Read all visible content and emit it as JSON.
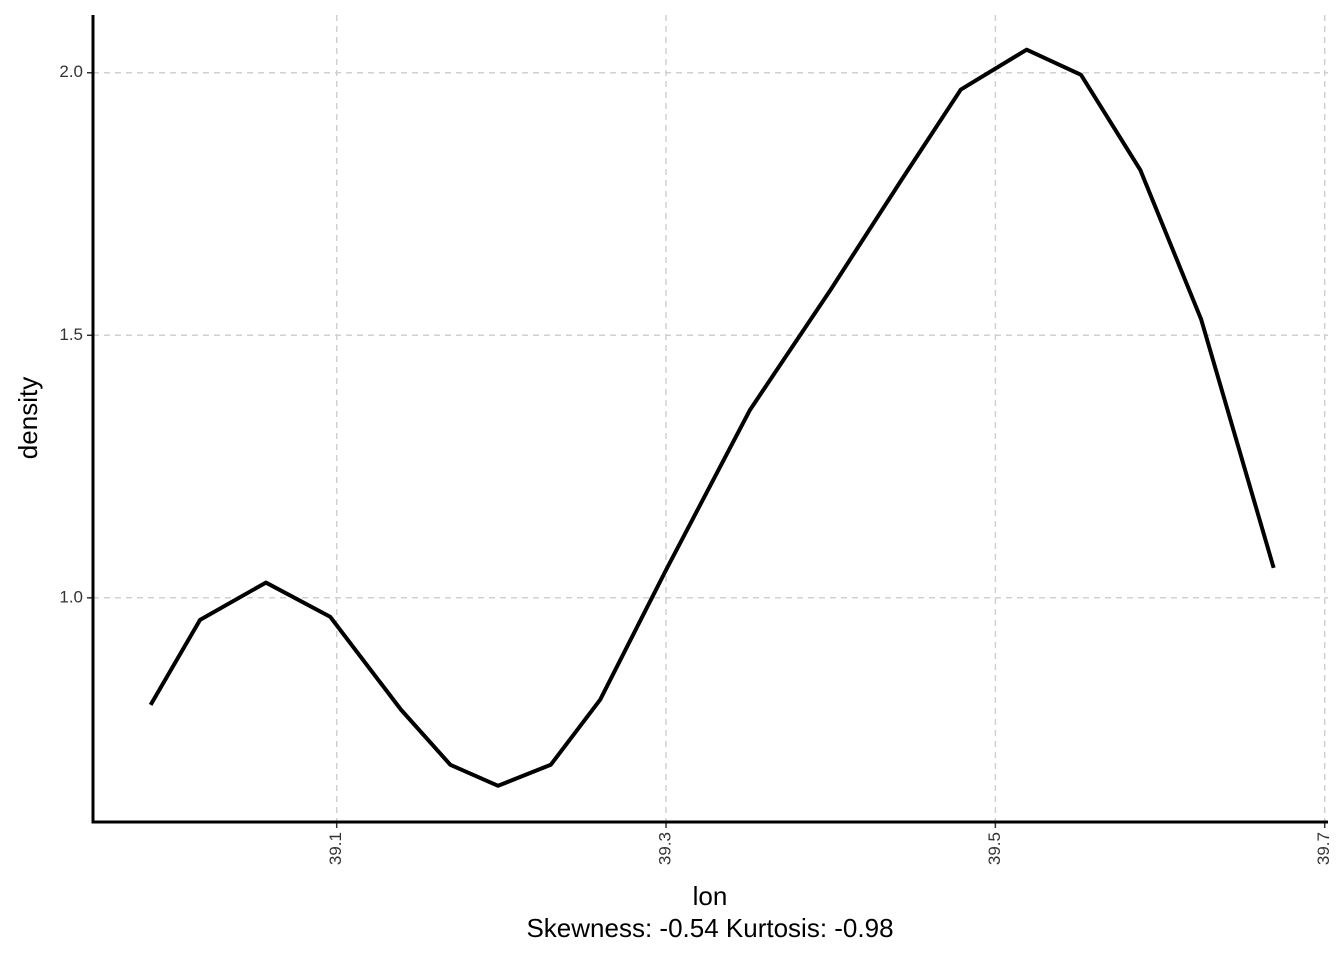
{
  "chart_data": {
    "type": "line",
    "x_label": "lon",
    "y_label": "density",
    "caption": "Skewness: -0.54 Kurtosis: -0.98",
    "x": [
      38.987,
      39.017,
      39.057,
      39.096,
      39.139,
      39.169,
      39.198,
      39.23,
      39.26,
      39.3,
      39.351,
      39.4,
      39.443,
      39.479,
      39.519,
      39.552,
      39.588,
      39.625,
      39.669
    ],
    "series": [
      {
        "color": "#000000",
        "values": [
          0.796,
          0.958,
          1.029,
          0.964,
          0.787,
          0.682,
          0.642,
          0.682,
          0.806,
          1.053,
          1.358,
          1.587,
          1.796,
          1.968,
          2.044,
          1.996,
          1.815,
          1.53,
          1.057
        ]
      }
    ],
    "xlim": [
      38.952,
      39.702
    ],
    "ylim": [
      0.573,
      2.11
    ],
    "xticks": [
      39.1,
      39.3,
      39.5,
      39.7
    ],
    "yticks": [
      {
        "value": 1,
        "label": "1.0"
      },
      {
        "value": 1.5,
        "label": "1.5"
      },
      {
        "value": 2,
        "label": "2.0"
      }
    ],
    "grid": true
  }
}
